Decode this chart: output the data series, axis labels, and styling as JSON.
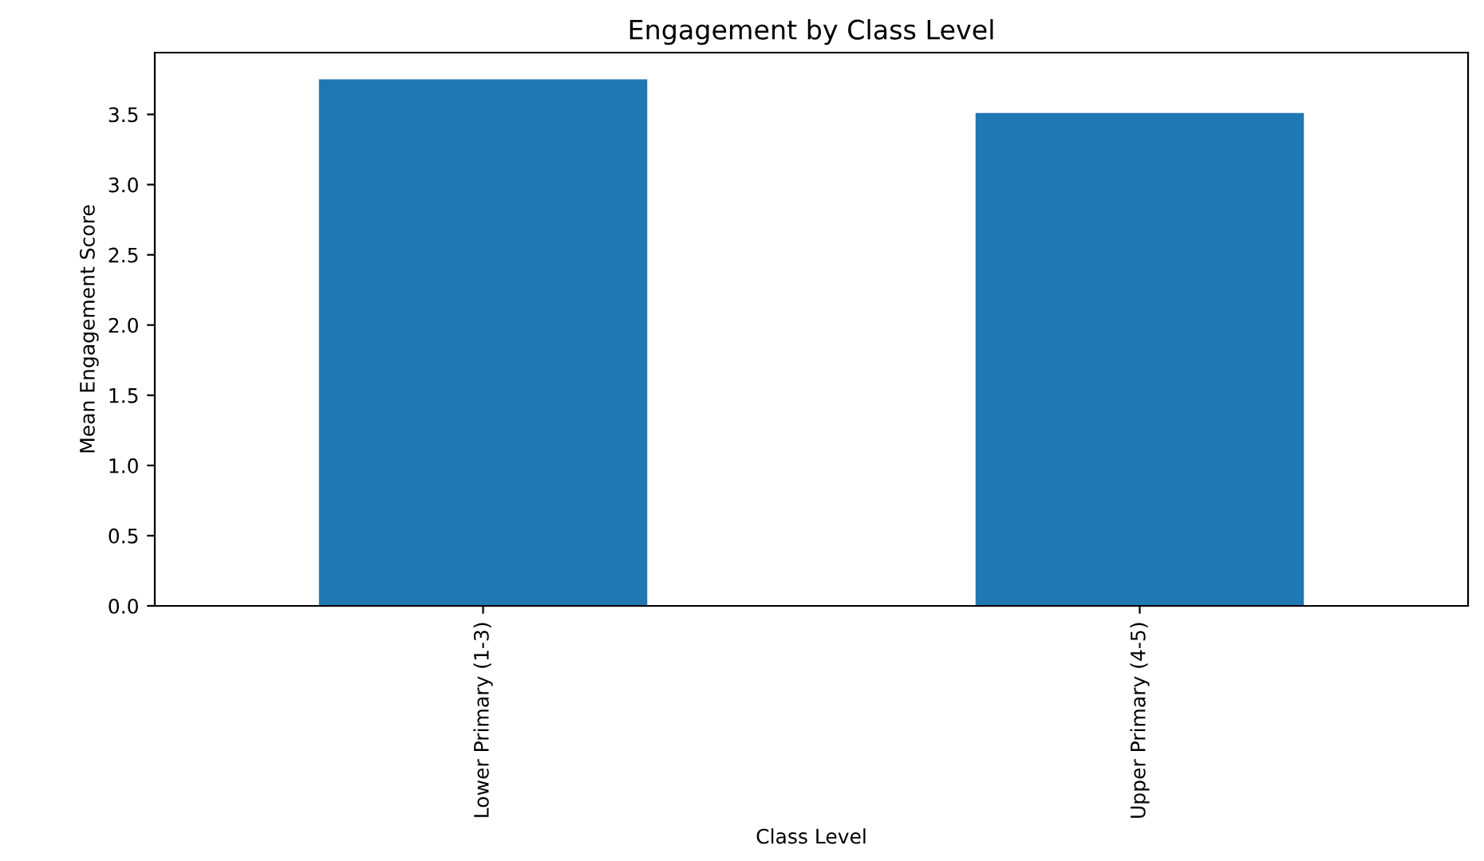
{
  "chart_data": {
    "type": "bar",
    "title": "Engagement by Class Level",
    "xlabel": "Class Level",
    "ylabel": "Mean Engagement Score",
    "categories": [
      "Lower Primary (1-3)",
      "Upper Primary (4-5)"
    ],
    "values": [
      3.75,
      3.51
    ],
    "color": "#1f77b4",
    "ylim": [
      0,
      3.94
    ],
    "yticks": [
      {
        "value": 0,
        "label": "0.0"
      },
      {
        "value": 0.5,
        "label": "0.5"
      },
      {
        "value": 1,
        "label": "1.0"
      },
      {
        "value": 1.5,
        "label": "1.5"
      },
      {
        "value": 2,
        "label": "2.0"
      },
      {
        "value": 2.5,
        "label": "2.5"
      },
      {
        "value": 3,
        "label": "3.0"
      },
      {
        "value": 3.5,
        "label": "3.5"
      }
    ]
  }
}
